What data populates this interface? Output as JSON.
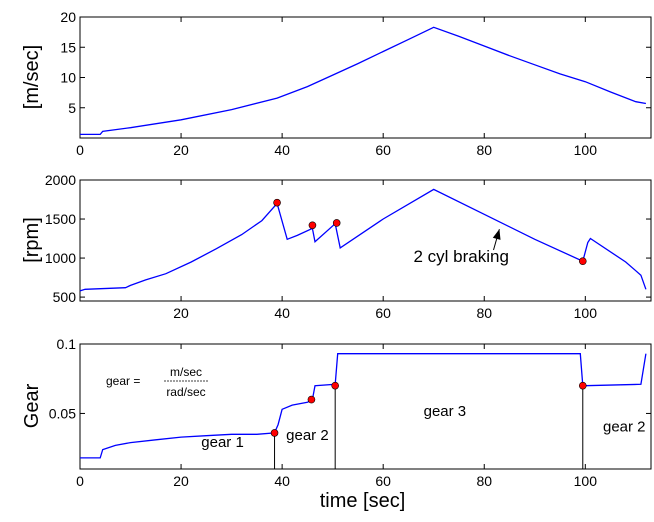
{
  "chart_data": [
    {
      "type": "line",
      "ylabel": "[m/sec]",
      "xlabel": "",
      "xlim": [
        0,
        113
      ],
      "ylim": [
        0,
        20
      ],
      "xticks": [
        0,
        20,
        40,
        60,
        80,
        100
      ],
      "yticks": [
        5,
        10,
        15,
        20
      ],
      "grid": false,
      "series": [
        {
          "color": "#0000ff",
          "x": [
            0,
            4,
            4.5,
            10,
            20,
            30,
            39,
            45,
            50,
            55,
            60,
            65,
            70,
            75,
            80,
            85,
            90,
            95,
            100,
            105,
            110,
            112
          ],
          "y": [
            0.6,
            0.6,
            1.1,
            1.7,
            3.0,
            4.7,
            6.6,
            8.5,
            10.4,
            12.3,
            14.3,
            16.3,
            18.3,
            16.8,
            15.2,
            13.6,
            12.1,
            10.6,
            9.3,
            7.6,
            6.0,
            5.7
          ]
        }
      ],
      "annotations": []
    },
    {
      "type": "line",
      "ylabel": "[rpm]",
      "xlabel": "",
      "xlim": [
        0,
        113
      ],
      "ylim": [
        450,
        2000
      ],
      "xticks": [
        20,
        40,
        60,
        80,
        100
      ],
      "yticks": [
        500,
        1000,
        1500,
        2000
      ],
      "grid": false,
      "series": [
        {
          "color": "#0000ff",
          "x": [
            0,
            1,
            9,
            10,
            13,
            17,
            22,
            27,
            32,
            36,
            39,
            41,
            43,
            46,
            46.5,
            50.5,
            51.5,
            60,
            70,
            80,
            90,
            99.5,
            100.5,
            101,
            108,
            111,
            112
          ],
          "y": [
            580,
            600,
            620,
            650,
            720,
            800,
            950,
            1120,
            1300,
            1480,
            1700,
            1240,
            1290,
            1380,
            1210,
            1440,
            1130,
            1500,
            1880,
            1560,
            1240,
            960,
            1200,
            1250,
            950,
            780,
            600
          ]
        }
      ],
      "markers": {
        "color": "#ff0000",
        "x": [
          39,
          46,
          50.8,
          99.5
        ],
        "y": [
          1710,
          1420,
          1450,
          960
        ]
      },
      "annotations": [
        {
          "text": "2 cyl braking",
          "x": 66,
          "y": 950,
          "arrow_to": [
            83,
            1370
          ]
        }
      ]
    },
    {
      "type": "line",
      "ylabel": "Gear",
      "xlabel": "time [sec]",
      "xlim": [
        0,
        113
      ],
      "ylim": [
        0.01,
        0.1
      ],
      "xticks": [
        0,
        20,
        40,
        60,
        80,
        100
      ],
      "yticks": [
        0.05,
        0.1
      ],
      "grid": false,
      "series": [
        {
          "color": "#0000ff",
          "x": [
            0,
            4,
            4.5,
            7,
            10,
            15,
            20,
            25,
            30,
            35,
            38.5,
            39.2,
            40,
            42,
            45,
            46,
            46.5,
            50.5,
            51,
            70,
            99,
            99.5,
            100,
            111,
            112
          ],
          "y": [
            0.018,
            0.018,
            0.024,
            0.027,
            0.029,
            0.031,
            0.033,
            0.034,
            0.035,
            0.035,
            0.036,
            0.042,
            0.053,
            0.056,
            0.058,
            0.06,
            0.07,
            0.071,
            0.093,
            0.093,
            0.093,
            0.07,
            0.07,
            0.071,
            0.093
          ]
        }
      ],
      "markers": {
        "color": "#ff0000",
        "x": [
          38.5,
          45.8,
          50.5,
          99.5
        ],
        "y": [
          0.036,
          0.06,
          0.07,
          0.07
        ]
      },
      "vlines": [
        38.5,
        50.5,
        99.5
      ],
      "annotations": [
        {
          "text": "gear 1",
          "x": 24,
          "y": 0.026
        },
        {
          "text": "gear 2",
          "x": 40.8,
          "y": 0.031
        },
        {
          "text": "gear 3",
          "x": 68,
          "y": 0.048
        },
        {
          "text": "gear 2",
          "x": 103.5,
          "y": 0.037
        }
      ],
      "formula": {
        "lhs": "gear =",
        "numerator": "m/sec",
        "denominator": "rad/sec"
      }
    }
  ]
}
